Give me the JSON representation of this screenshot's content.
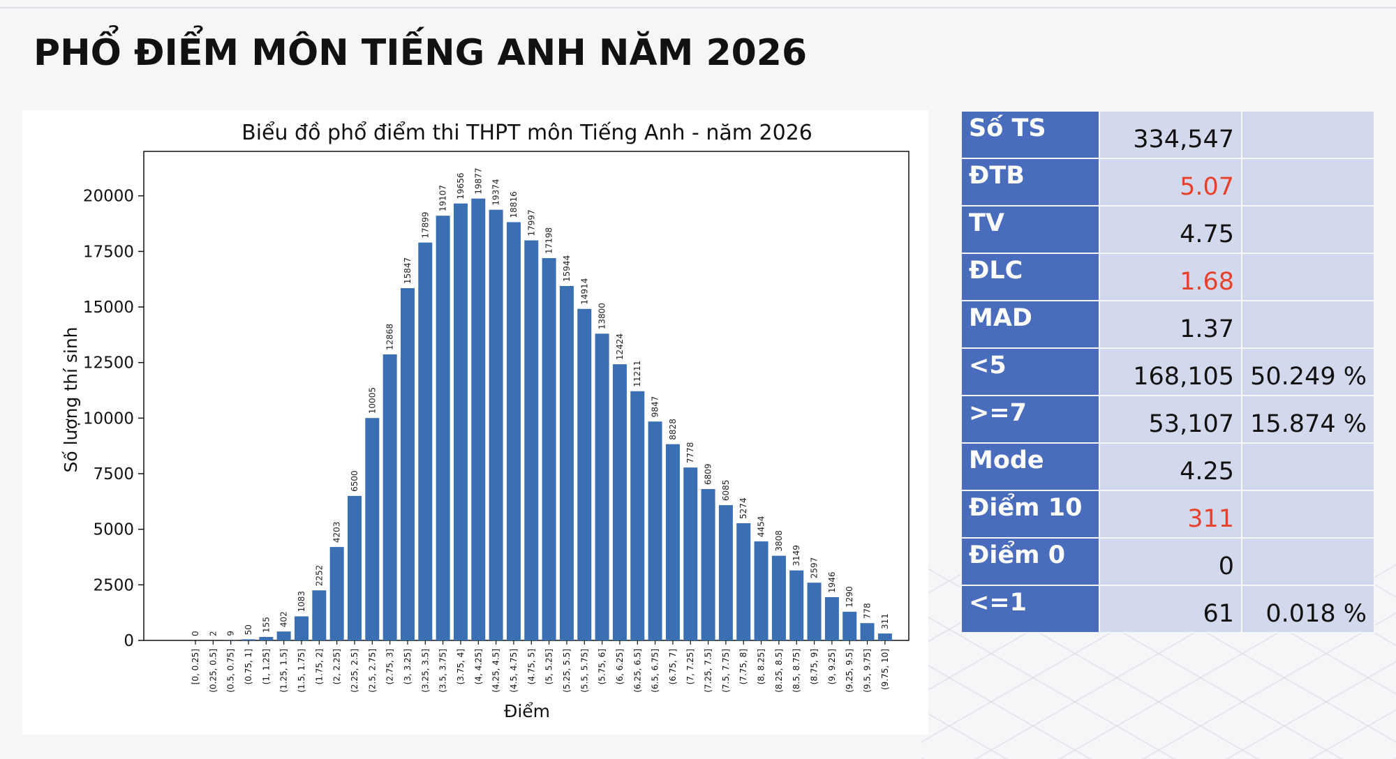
{
  "page": {
    "title": "PHỔ ĐIỂM MÔN TIẾNG ANH NĂM 2026"
  },
  "colors": {
    "bar": "#3a6fb4",
    "label_cell": "#4a6cbd",
    "value_cell": "#d3d9ed",
    "highlight": "#e8412b"
  },
  "chart_data": {
    "type": "bar",
    "title": "Biểu đồ phổ điểm thi THPT môn Tiếng Anh - năm 2026",
    "xlabel": "Điểm",
    "ylabel": "Số lượng thí sinh",
    "ylim": [
      0,
      22000
    ],
    "yticks": [
      0,
      2500,
      5000,
      7500,
      10000,
      12500,
      15000,
      17500,
      20000
    ],
    "grid": false,
    "categories": [
      "[0, 0.25]",
      "(0.25, 0.5]",
      "(0.5, 0.75]",
      "(0.75, 1]",
      "(1, 1.25]",
      "(1.25, 1.5]",
      "(1.5, 1.75]",
      "(1.75, 2]",
      "(2, 2.25]",
      "(2.25, 2.5]",
      "(2.5, 2.75]",
      "(2.75, 3]",
      "(3, 3.25]",
      "(3.25, 3.5]",
      "(3.5, 3.75]",
      "(3.75, 4]",
      "(4, 4.25]",
      "(4.25, 4.5]",
      "(4.5, 4.75]",
      "(4.75, 5]",
      "(5, 5.25]",
      "(5.25, 5.5]",
      "(5.5, 5.75]",
      "(5.75, 6]",
      "(6, 6.25]",
      "(6.25, 6.5]",
      "(6.5, 6.75]",
      "(6.75, 7]",
      "(7, 7.25]",
      "(7.25, 7.5]",
      "(7.5, 7.75]",
      "(7.75, 8]",
      "(8, 8.25]",
      "(8.25, 8.5]",
      "(8.5, 8.75]",
      "(8.75, 9]",
      "(9, 9.25]",
      "(9.25, 9.5]",
      "(9.5, 9.75]",
      "(9.75, 10]"
    ],
    "values": [
      0,
      2,
      9,
      50,
      155,
      402,
      1083,
      2252,
      4203,
      6500,
      10005,
      12868,
      15847,
      17899,
      19107,
      19656,
      19877,
      19374,
      18816,
      17997,
      17198,
      15944,
      14914,
      13800,
      12424,
      11211,
      9847,
      8828,
      7778,
      6809,
      6085,
      5274,
      4454,
      3808,
      3149,
      2597,
      1946,
      1290,
      778,
      311
    ]
  },
  "stats": [
    {
      "label": "Số TS",
      "value": "334,547",
      "pct": "",
      "highlight": false
    },
    {
      "label": "ĐTB",
      "value": "5.07",
      "pct": "",
      "highlight": true
    },
    {
      "label": "TV",
      "value": "4.75",
      "pct": "",
      "highlight": false
    },
    {
      "label": "ĐLC",
      "value": "1.68",
      "pct": "",
      "highlight": true
    },
    {
      "label": "MAD",
      "value": "1.37",
      "pct": "",
      "highlight": false
    },
    {
      "label": "<5",
      "value": "168,105",
      "pct": "50.249 %",
      "highlight": false
    },
    {
      "label": ">=7",
      "value": "53,107",
      "pct": "15.874 %",
      "highlight": false
    },
    {
      "label": "Mode",
      "value": "4.25",
      "pct": "",
      "highlight": false
    },
    {
      "label": "Điểm 10",
      "value": "311",
      "pct": "",
      "highlight": true
    },
    {
      "label": "Điểm 0",
      "value": "0",
      "pct": "",
      "highlight": false
    },
    {
      "label": "<=1",
      "value": "61",
      "pct": "0.018 %",
      "highlight": false
    }
  ]
}
